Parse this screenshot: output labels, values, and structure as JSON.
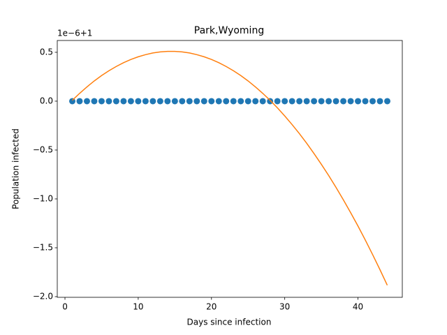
{
  "chart_data": {
    "type": "line",
    "title": "Park,Wyoming",
    "x_label": "Days since infection",
    "y_label": "Population infected",
    "y_offset_text": "1e−6+1",
    "x": [
      1,
      2,
      3,
      4,
      5,
      6,
      7,
      8,
      9,
      10,
      11,
      12,
      13,
      14,
      15,
      16,
      17,
      18,
      19,
      20,
      21,
      22,
      23,
      24,
      25,
      26,
      27,
      28,
      29,
      30,
      31,
      32,
      33,
      34,
      35,
      36,
      37,
      38,
      39,
      40,
      41,
      42,
      43,
      44
    ],
    "series": [
      {
        "color": "#1f77b4",
        "style": "markers",
        "values": [
          0,
          0,
          0,
          0,
          0,
          0,
          0,
          0,
          0,
          0,
          0,
          0,
          0,
          0,
          0,
          0,
          0,
          0,
          0,
          0,
          0,
          0,
          0,
          0,
          0,
          0,
          0,
          0,
          0,
          0,
          0,
          0,
          0,
          0,
          0,
          0,
          0,
          0,
          0,
          0,
          0,
          0,
          0,
          0
        ]
      },
      {
        "color": "#ff7f0e",
        "style": "line",
        "values": [
          0.009,
          0.08,
          0.146,
          0.207,
          0.262,
          0.311,
          0.355,
          0.394,
          0.427,
          0.454,
          0.476,
          0.493,
          0.504,
          0.509,
          0.509,
          0.504,
          0.493,
          0.476,
          0.454,
          0.427,
          0.394,
          0.355,
          0.311,
          0.262,
          0.207,
          0.146,
          0.08,
          0.009,
          -0.068,
          -0.151,
          -0.239,
          -0.332,
          -0.431,
          -0.536,
          -0.646,
          -0.761,
          -0.882,
          -1.009,
          -1.141,
          -1.278,
          -1.421,
          -1.57,
          -1.724,
          -1.883
        ]
      }
    ],
    "xlim": [
      -1.05,
      46.05
    ],
    "xticks": [
      0,
      10,
      20,
      30,
      40
    ],
    "ylim": [
      -2.007,
      0.621
    ],
    "yticks": [
      {
        "value": -2,
        "label": "−2.0"
      },
      {
        "value": -1.5,
        "label": "−1.5"
      },
      {
        "value": -1,
        "label": "−1.0"
      },
      {
        "value": -0.5,
        "label": "−0.5"
      },
      {
        "value": 0,
        "label": "0.0"
      },
      0.5
    ]
  }
}
